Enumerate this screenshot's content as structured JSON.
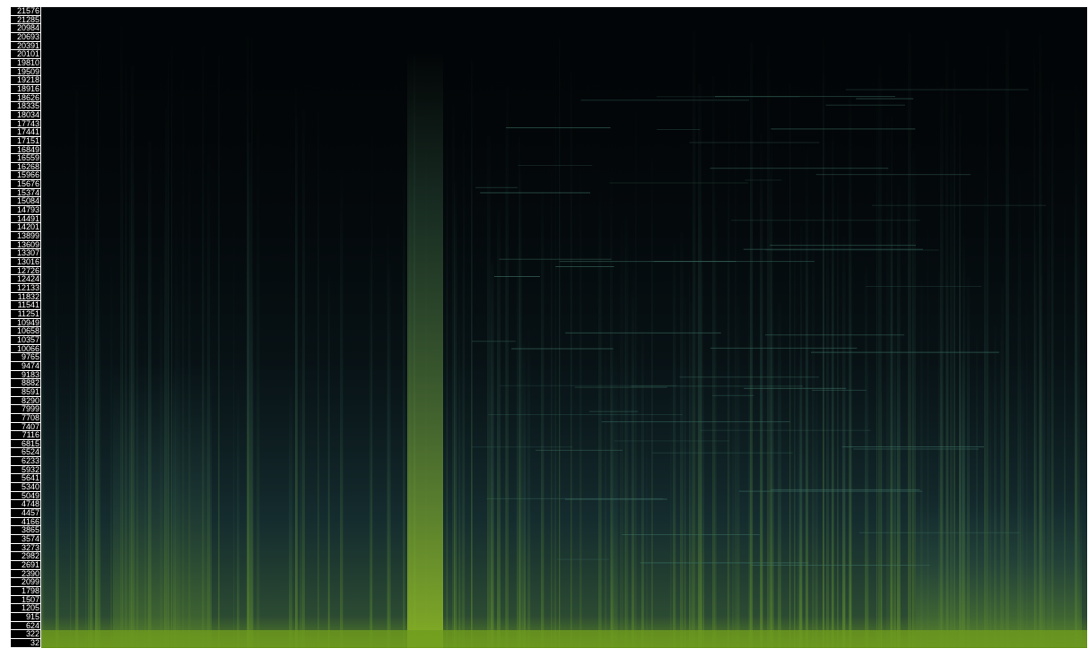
{
  "chart_data": {
    "type": "heatmap",
    "title": "",
    "xlabel": "",
    "ylabel": "",
    "y_ticks": [
      21576,
      21285,
      20984,
      20693,
      20391,
      20101,
      19810,
      19509,
      19218,
      18916,
      18626,
      18335,
      18034,
      17743,
      17441,
      17151,
      16849,
      16559,
      16268,
      15966,
      15676,
      15374,
      15084,
      14793,
      14491,
      14201,
      13899,
      13609,
      13307,
      13016,
      12726,
      12424,
      12133,
      11832,
      11541,
      11251,
      10949,
      10658,
      10357,
      10066,
      9765,
      9474,
      9183,
      8882,
      8591,
      8290,
      7999,
      7708,
      7407,
      7116,
      6815,
      6524,
      6233,
      5932,
      5641,
      5340,
      5049,
      4748,
      4457,
      4166,
      3865,
      3574,
      3273,
      2982,
      2691,
      2390,
      2099,
      1798,
      1507,
      1205,
      915,
      624,
      322,
      32
    ],
    "ylim": [
      32,
      21576
    ],
    "colors": {
      "background": "#020507",
      "low": "#12303a",
      "mid": "#2f5a4c",
      "high": "#7ba81f"
    }
  }
}
